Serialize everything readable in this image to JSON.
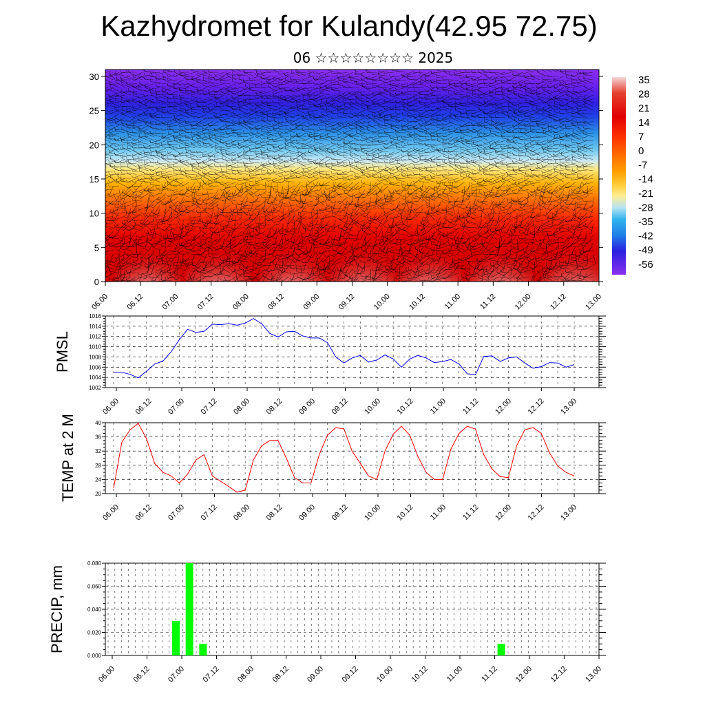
{
  "title": "Kazhydromet for Kulandy(42.95 72.75)",
  "subtitle": "06 ☆☆☆☆☆☆☆☆ 2025",
  "x_tick_labels": [
    "06.00",
    "06.12",
    "07.00",
    "07.12",
    "08.00",
    "08.12",
    "09.00",
    "09.12",
    "10.00",
    "10.12",
    "11.00",
    "11.12",
    "12.00",
    "12.12",
    "13.00"
  ],
  "colors": {
    "pmsl_line": "#0000ff",
    "temp_line": "#ff0000",
    "precip_bar": "#00ff00"
  },
  "chart_data": [
    {
      "type": "heatmap",
      "name": "upper-air temperature cross-section with wind barbs",
      "y_ticks": [
        0,
        5,
        10,
        15,
        20,
        25,
        30
      ],
      "ylim": [
        0,
        31
      ],
      "colorbar_labels": [
        "35",
        "28",
        "21",
        "14",
        "7",
        "0",
        "-7",
        "-14",
        "-21",
        "-28",
        "-35",
        "-42",
        "-49",
        "-56"
      ],
      "colorbar_colors": [
        "#f4d6d6",
        "#e44030",
        "#e00000",
        "#ff2a00",
        "#ff6a00",
        "#ff9800",
        "#ffc000",
        "#ffe880",
        "#b8e4f2",
        "#30b4ee",
        "#2090e8",
        "#3050e8",
        "#2a10e0",
        "#8a30f0"
      ]
    },
    {
      "type": "line",
      "ylabel": "PMSL",
      "ylim": [
        1002,
        1016
      ],
      "y_ticks": [
        "1002",
        "1004",
        "1006",
        "1008",
        "1010",
        "1012",
        "1014",
        "1016"
      ],
      "values": [
        1005.0,
        1005.0,
        1004.6,
        1003.9,
        1005.2,
        1006.6,
        1007.2,
        1009.0,
        1011.4,
        1013.4,
        1012.8,
        1013.0,
        1014.4,
        1014.3,
        1014.5,
        1014.2,
        1014.6,
        1015.5,
        1014.5,
        1012.6,
        1011.9,
        1012.9,
        1013.0,
        1012.1,
        1011.7,
        1011.7,
        1010.8,
        1008.0,
        1006.8,
        1007.8,
        1008.3,
        1007.0,
        1007.4,
        1008.4,
        1007.6,
        1006.0,
        1007.6,
        1008.3,
        1007.8,
        1006.9,
        1007.1,
        1007.5,
        1006.6,
        1004.7,
        1004.5,
        1008.1,
        1008.2,
        1007.1,
        1007.8,
        1008.0,
        1006.8,
        1005.8,
        1006.1,
        1006.9,
        1006.8,
        1006.0,
        1006.5
      ]
    },
    {
      "type": "line",
      "ylabel": "TEMP at 2 M",
      "ylim": [
        20,
        40
      ],
      "y_ticks": [
        "20",
        "24",
        "28",
        "32",
        "36",
        "40"
      ],
      "values": [
        21.5,
        34.5,
        38.0,
        39.8,
        35.5,
        28.5,
        26.0,
        25.0,
        23.0,
        25.5,
        29.5,
        31.0,
        25.0,
        23.5,
        22.0,
        20.4,
        21.0,
        29.5,
        33.5,
        35.0,
        35.0,
        30.0,
        24.5,
        23.0,
        23.0,
        31.0,
        36.5,
        38.6,
        38.3,
        32.0,
        28.5,
        25.0,
        24.0,
        32.0,
        36.8,
        39.0,
        36.5,
        30.5,
        26.0,
        24.0,
        24.0,
        32.5,
        37.0,
        39.0,
        38.2,
        31.0,
        27.0,
        24.8,
        24.5,
        33.5,
        38.0,
        38.6,
        37.0,
        31.5,
        27.8,
        26.0,
        25.0
      ]
    },
    {
      "type": "bar",
      "ylabel": "PRECIP, mm",
      "ylim": [
        0,
        0.08
      ],
      "y_ticks": [
        "0.000",
        "0.020",
        "0.040",
        "0.060",
        "0.080"
      ],
      "values": [
        0,
        0,
        0,
        0,
        0,
        0,
        0,
        0,
        0,
        0,
        0.03,
        0,
        0.08,
        0,
        0.01,
        0,
        0,
        0,
        0,
        0,
        0,
        0,
        0,
        0,
        0,
        0,
        0,
        0,
        0,
        0,
        0,
        0,
        0,
        0,
        0,
        0,
        0,
        0,
        0,
        0,
        0,
        0,
        0,
        0,
        0,
        0,
        0,
        0,
        0,
        0,
        0,
        0,
        0,
        0,
        0,
        0,
        0,
        0,
        0.01,
        0,
        0,
        0,
        0,
        0,
        0,
        0,
        0,
        0,
        0,
        0,
        0,
        0,
        0
      ]
    }
  ]
}
